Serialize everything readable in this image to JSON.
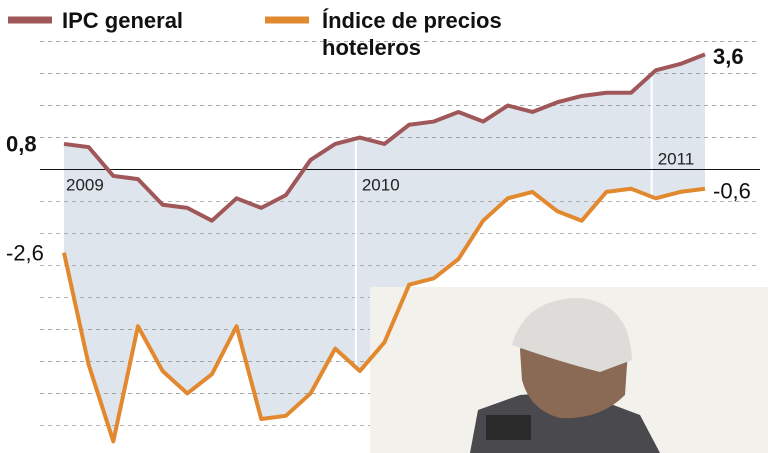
{
  "chart_data": {
    "type": "line",
    "categories": [
      "2009",
      null,
      null,
      null,
      null,
      null,
      null,
      null,
      null,
      null,
      null,
      null,
      "2010",
      null,
      null,
      null,
      null,
      null,
      null,
      null,
      null,
      null,
      null,
      null,
      "2011",
      null,
      null
    ],
    "series": [
      {
        "name": "IPC general",
        "color": "#a0575a",
        "values": [
          0.8,
          0.7,
          -0.2,
          -0.3,
          -1.1,
          -1.2,
          -1.6,
          -0.9,
          -1.2,
          -0.8,
          0.3,
          0.8,
          1.0,
          0.8,
          1.4,
          1.5,
          1.8,
          1.5,
          2.0,
          1.8,
          2.1,
          2.3,
          2.4,
          2.4,
          3.1,
          3.3,
          3.6
        ],
        "value_labels": [
          "0,8",
          null,
          null,
          null,
          null,
          null,
          null,
          null,
          null,
          null,
          null,
          null,
          null,
          null,
          null,
          null,
          null,
          null,
          null,
          null,
          null,
          null,
          null,
          null,
          null,
          null,
          "3,6"
        ]
      },
      {
        "name": "Índice de precios hoteleros",
        "color": "#e2892f",
        "values": [
          -2.6,
          -6.1,
          -8.5,
          -4.9,
          -6.3,
          -7.0,
          -6.4,
          -4.9,
          -7.8,
          -7.7,
          -7.0,
          -5.6,
          -6.3,
          -5.4,
          -3.6,
          -3.4,
          -2.8,
          -1.6,
          -0.9,
          -0.7,
          -1.3,
          -1.6,
          -0.7,
          -0.6,
          -0.9,
          -0.7,
          -0.6
        ],
        "value_labels": [
          "-2,6",
          null,
          null,
          null,
          null,
          null,
          null,
          null,
          null,
          null,
          null,
          null,
          null,
          null,
          null,
          null,
          null,
          null,
          null,
          null,
          null,
          null,
          null,
          null,
          null,
          null,
          "-0,6"
        ]
      }
    ],
    "ylim": [
      -8.8,
      5.3
    ],
    "yticks": [
      4,
      3,
      2,
      1,
      -1,
      -2,
      -3,
      -4,
      -5,
      -6,
      -7,
      -8
    ],
    "grid": true
  }
}
